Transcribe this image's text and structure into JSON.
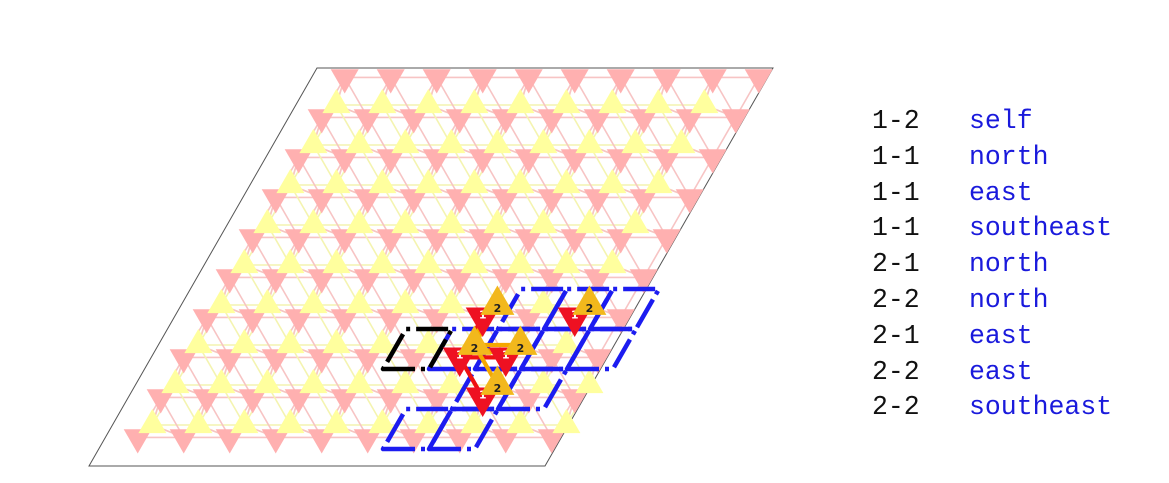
{
  "colors": {
    "frame": "#555555",
    "bg_site_down": "#ffb0b0",
    "bg_site_up": "#ffff9e",
    "bg_bond_pink": "#f7c4c4",
    "bg_bond_yellow": "#f4f4b0",
    "cell_outline_blue": "#1c1cf0",
    "cell_outline_black": "#000000",
    "site_1": "#ee1122",
    "site_2": "#f2b81c",
    "bond_1": "#ee1111",
    "bond_2": "#f5a800",
    "label_pair": "#111111",
    "label_direction": "#1a1adc"
  },
  "icons": {
    "site_1": "down-triangle",
    "site_2": "up-triangle"
  },
  "sites": {
    "site_1_label": "1",
    "site_2_label": "2"
  },
  "bond_list": [
    {
      "pair": "1-2",
      "direction": "self"
    },
    {
      "pair": "1-1",
      "direction": "north"
    },
    {
      "pair": "1-1",
      "direction": "east"
    },
    {
      "pair": "1-1",
      "direction": "southeast"
    },
    {
      "pair": "2-1",
      "direction": "north"
    },
    {
      "pair": "2-2",
      "direction": "north"
    },
    {
      "pair": "2-1",
      "direction": "east"
    },
    {
      "pair": "2-2",
      "direction": "east"
    },
    {
      "pair": "2-2",
      "direction": "southeast"
    }
  ]
}
